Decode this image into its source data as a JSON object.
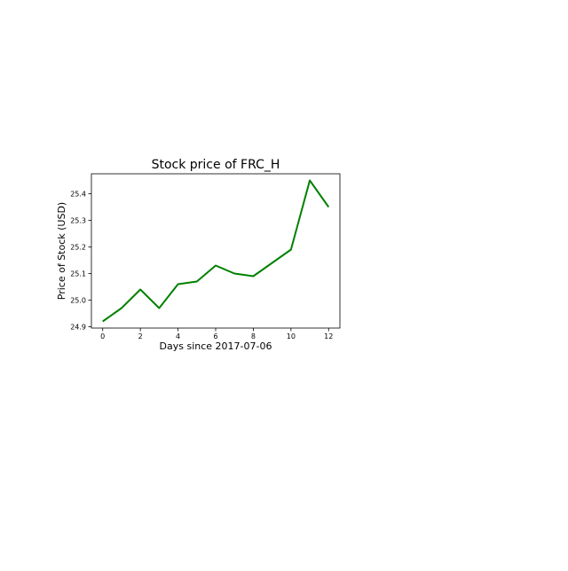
{
  "chart_data": {
    "type": "line",
    "title": "Stock price of FRC_H",
    "xlabel": "Days since 2017-07-06",
    "ylabel": "Price of Stock (USD)",
    "x": [
      0,
      1,
      2,
      3,
      4,
      5,
      6,
      7,
      8,
      9,
      10,
      11,
      12
    ],
    "series": [
      {
        "values": [
          24.92,
          24.97,
          25.04,
          24.97,
          25.06,
          25.07,
          25.13,
          25.1,
          25.09,
          25.14,
          25.19,
          25.45,
          25.35
        ],
        "color": "#008000"
      }
    ],
    "xlim": [
      -0.6,
      12.6
    ],
    "ylim": [
      24.895,
      25.475
    ],
    "xticks": [
      0,
      2,
      4,
      6,
      8,
      10,
      12
    ],
    "yticks": [
      24.9,
      25.0,
      25.1,
      25.2,
      25.3,
      25.4
    ],
    "ytick_labels": [
      "24.9",
      "25.0",
      "25.1",
      "25.2",
      "25.3",
      "25.4"
    ],
    "grid": false,
    "legend": "none"
  }
}
